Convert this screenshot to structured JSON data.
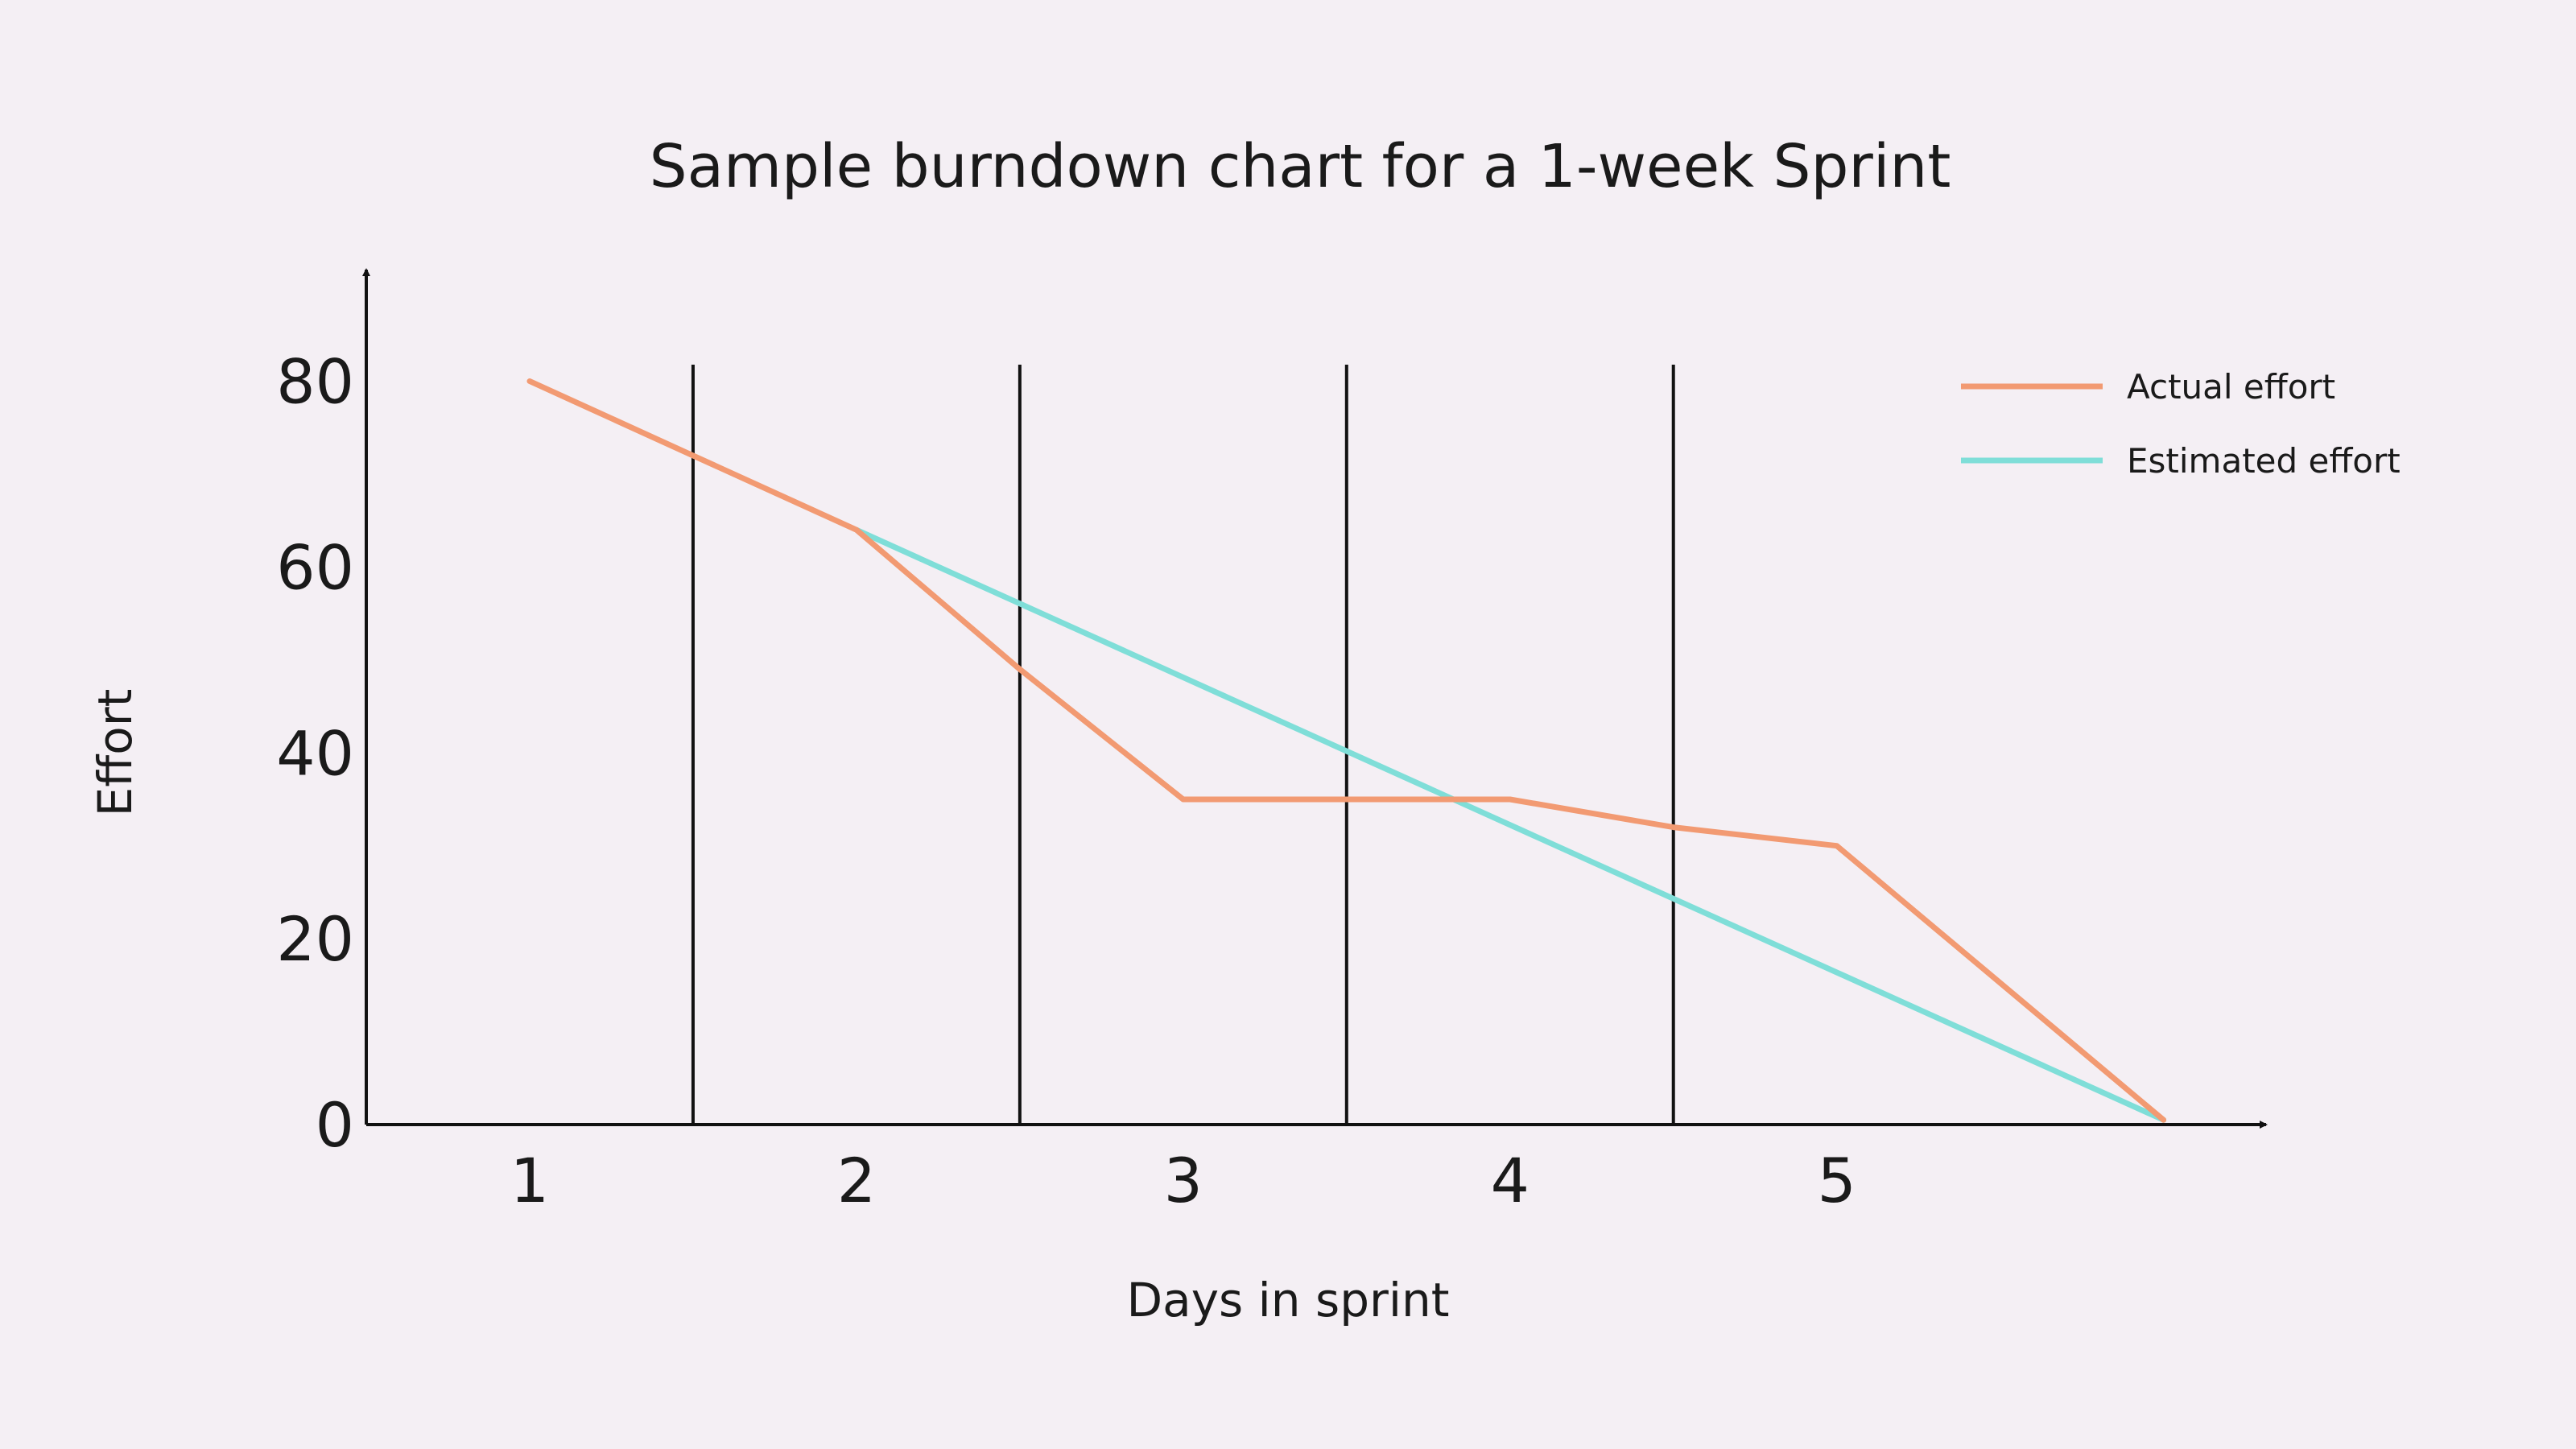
{
  "chart_data": {
    "type": "line",
    "title": "Sample burndown chart for a 1-week Sprint",
    "xlabel": "Days in sprint",
    "ylabel": "Effort",
    "x_tick_labels": [
      "1",
      "2",
      "3",
      "4",
      "5"
    ],
    "y_tick_labels": [
      "0",
      "20",
      "40",
      "60",
      "80"
    ],
    "xlim": [
      0.5,
      6.4
    ],
    "ylim": [
      0,
      92
    ],
    "grid": "vertical lines between days",
    "legend_position": "top-right",
    "series": [
      {
        "name": "Actual effort",
        "color": "#f29a72",
        "points": [
          [
            1,
            80
          ],
          [
            1.5,
            72
          ],
          [
            2,
            64
          ],
          [
            2.5,
            49
          ],
          [
            3,
            35
          ],
          [
            4,
            35
          ],
          [
            4.5,
            32
          ],
          [
            5,
            30
          ],
          [
            6,
            0.5
          ]
        ]
      },
      {
        "name": "Estimated effort",
        "color": "#7fded8",
        "points": [
          [
            2,
            64
          ],
          [
            6,
            0.5
          ]
        ]
      }
    ],
    "gridlines_x": [
      1.5,
      2.5,
      3.5,
      4.5
    ]
  }
}
